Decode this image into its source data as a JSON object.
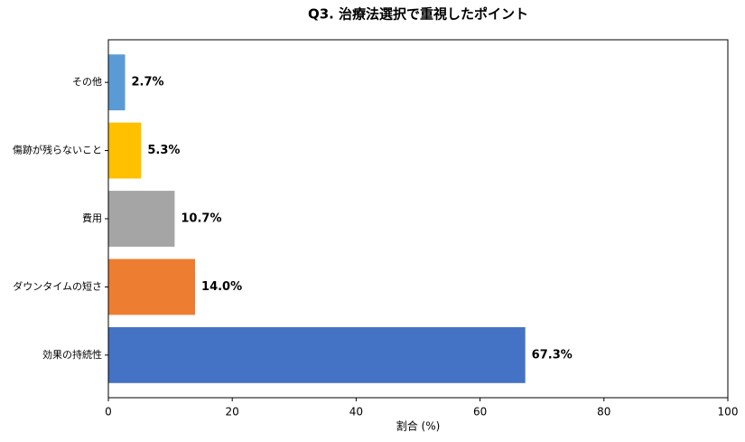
{
  "chart_data": {
    "type": "barh",
    "title": "Q3. 治療法選択で重視したポイント",
    "xlabel": "割合 (%)",
    "categories": [
      "その他",
      "傷跡が残らないこと",
      "費用",
      "ダウンタイムの短さ",
      "効果の持続性"
    ],
    "values": [
      2.7,
      5.3,
      10.7,
      14.0,
      67.3
    ],
    "value_labels": [
      "2.7%",
      "5.3%",
      "10.7%",
      "14.0%",
      "67.3%"
    ],
    "colors": [
      "#5b9bd5",
      "#ffc000",
      "#a5a5a5",
      "#ed7d31",
      "#4472c4"
    ],
    "xlim": [
      0,
      100
    ],
    "xticks": [
      0,
      20,
      40,
      60,
      80,
      100
    ]
  }
}
